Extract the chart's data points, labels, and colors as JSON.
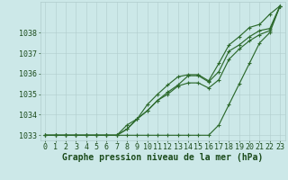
{
  "title": "Graphe pression niveau de la mer (hPa)",
  "x_hours": [
    0,
    1,
    2,
    3,
    4,
    5,
    6,
    7,
    8,
    9,
    10,
    11,
    12,
    13,
    14,
    15,
    16,
    17,
    18,
    19,
    20,
    21,
    22,
    23
  ],
  "series1": [
    1033,
    1033,
    1033,
    1033,
    1033,
    1033,
    1033,
    1033,
    1033,
    1033,
    1033,
    1033,
    1033,
    1033,
    1033,
    1033,
    1033,
    1033.5,
    1034.5,
    1035.5,
    1036.5,
    1037.5,
    1038.0,
    1039.3
  ],
  "series2": [
    1033,
    1033,
    1033,
    1033,
    1033,
    1033,
    1033,
    1033,
    1033.3,
    1033.8,
    1034.2,
    1034.7,
    1035.0,
    1035.4,
    1035.55,
    1035.55,
    1035.3,
    1035.7,
    1036.7,
    1037.2,
    1037.6,
    1037.9,
    1038.1,
    1039.3
  ],
  "series3": [
    1033,
    1033,
    1033,
    1033,
    1033,
    1033,
    1033,
    1033,
    1033.3,
    1033.8,
    1034.2,
    1034.7,
    1035.1,
    1035.45,
    1035.9,
    1035.9,
    1035.6,
    1036.1,
    1037.1,
    1037.4,
    1037.8,
    1038.1,
    1038.2,
    1039.3
  ],
  "series4": [
    1033,
    1033,
    1033,
    1033,
    1033,
    1033,
    1033,
    1033,
    1033.5,
    1033.8,
    1034.5,
    1035.0,
    1035.45,
    1035.85,
    1035.95,
    1035.95,
    1035.65,
    1036.5,
    1037.4,
    1037.8,
    1038.25,
    1038.4,
    1038.9,
    1039.3
  ],
  "ylim_min": 1032.75,
  "ylim_max": 1039.5,
  "yticks": [
    1033,
    1034,
    1035,
    1036,
    1037,
    1038
  ],
  "line_color": "#2d6a2d",
  "bg_color": "#cce8e8",
  "grid_color": "#b0cccc",
  "label_color": "#1a4a1a",
  "tick_fontsize": 6,
  "xlabel_fontsize": 7
}
